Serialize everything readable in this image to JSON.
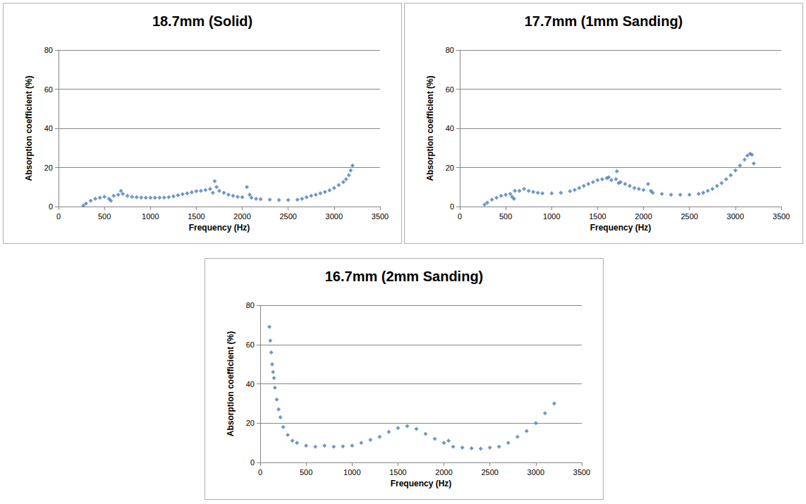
{
  "chart_data": [
    {
      "type": "scatter",
      "title": "18.7mm (Solid)",
      "xlabel": "Frequency (Hz)",
      "ylabel": "Absorption coefficient (%)",
      "x": [
        270,
        300,
        350,
        400,
        450,
        500,
        550,
        570,
        600,
        650,
        680,
        700,
        750,
        800,
        850,
        900,
        950,
        1000,
        1050,
        1100,
        1150,
        1200,
        1250,
        1300,
        1350,
        1400,
        1450,
        1500,
        1550,
        1600,
        1650,
        1680,
        1700,
        1720,
        1750,
        1800,
        1850,
        1900,
        1950,
        2000,
        2050,
        2080,
        2100,
        2150,
        2200,
        2300,
        2400,
        2500,
        2600,
        2650,
        2700,
        2750,
        2800,
        2850,
        2900,
        2950,
        3000,
        3050,
        3100,
        3130,
        3160,
        3180,
        3200
      ],
      "values": [
        0.5,
        1.5,
        3,
        4,
        4.5,
        5,
        4,
        3,
        5.5,
        6,
        8,
        6.5,
        5.5,
        5,
        4.8,
        4.6,
        4.5,
        4.5,
        4.5,
        4.5,
        4.6,
        4.8,
        5.2,
        5.8,
        6.3,
        6.8,
        7.3,
        7.8,
        8,
        8.5,
        9,
        7,
        13,
        10,
        8,
        7,
        6,
        5.5,
        5,
        4.8,
        10,
        6,
        4.5,
        4,
        3.8,
        3.5,
        3.3,
        3.3,
        3.5,
        4,
        4.8,
        5.5,
        6,
        6.8,
        7.5,
        8.3,
        9.5,
        11,
        12.5,
        14,
        16,
        18.5,
        21
      ],
      "color": "#4a7ebb",
      "marker": "diamond",
      "xlim": [
        0,
        3500
      ],
      "xticks": [
        0,
        500,
        1000,
        1500,
        2000,
        2500,
        3000,
        3500
      ],
      "ylim": [
        0,
        80
      ],
      "yticks": [
        0,
        20,
        40,
        60,
        80
      ],
      "grid": true
    },
    {
      "type": "scatter",
      "title": "17.7mm (1mm Sanding)",
      "xlabel": "Frequency (Hz)",
      "ylabel": "Absorption coefficient (%)",
      "x": [
        270,
        300,
        350,
        400,
        450,
        500,
        550,
        570,
        590,
        600,
        650,
        700,
        750,
        800,
        850,
        900,
        1000,
        1100,
        1200,
        1250,
        1300,
        1350,
        1400,
        1450,
        1500,
        1550,
        1600,
        1620,
        1650,
        1700,
        1710,
        1730,
        1750,
        1800,
        1850,
        1900,
        1950,
        2000,
        2050,
        2080,
        2100,
        2200,
        2300,
        2400,
        2500,
        2600,
        2650,
        2700,
        2750,
        2800,
        2850,
        2900,
        2950,
        3000,
        3050,
        3100,
        3130,
        3160,
        3180,
        3200
      ],
      "values": [
        1,
        2,
        3.5,
        4.5,
        5.5,
        6,
        6.5,
        5,
        4,
        8,
        8,
        9,
        8,
        7.5,
        7,
        6.8,
        6.8,
        7,
        7.8,
        8.5,
        9.5,
        10.5,
        11.5,
        12.5,
        13.5,
        14,
        14.5,
        15,
        13.5,
        14,
        18,
        12,
        12.5,
        11.5,
        10.5,
        9.5,
        9,
        8.5,
        11.5,
        8,
        7,
        6.5,
        6,
        6,
        6,
        6.5,
        7,
        8,
        9,
        10.5,
        12,
        14,
        16,
        18.5,
        21,
        24,
        26,
        27,
        26.5,
        22
      ],
      "color": "#4a7ebb",
      "marker": "diamond",
      "xlim": [
        0,
        3500
      ],
      "xticks": [
        0,
        500,
        1000,
        1500,
        2000,
        2500,
        3000,
        3500
      ],
      "ylim": [
        0,
        80
      ],
      "yticks": [
        0,
        20,
        40,
        60,
        80
      ],
      "grid": true
    },
    {
      "type": "scatter",
      "title": "16.7mm (2mm Sanding)",
      "xlabel": "Frequency (Hz)",
      "ylabel": "Absorption coefficient (%)",
      "x": [
        100,
        110,
        120,
        130,
        140,
        150,
        160,
        180,
        200,
        220,
        250,
        300,
        350,
        400,
        500,
        600,
        700,
        800,
        900,
        1000,
        1100,
        1200,
        1300,
        1400,
        1500,
        1600,
        1700,
        1800,
        1900,
        2000,
        2050,
        2100,
        2200,
        2300,
        2400,
        2500,
        2600,
        2700,
        2800,
        2900,
        3000,
        3100,
        3200
      ],
      "values": [
        69,
        62,
        56,
        50,
        46,
        43,
        38,
        32,
        27,
        23,
        18,
        14,
        11,
        10,
        8.5,
        8,
        8.5,
        8,
        8.2,
        8.5,
        10,
        11.5,
        13,
        15.5,
        17.5,
        18.5,
        17,
        14.5,
        12,
        10,
        11,
        8,
        7.5,
        7.2,
        7,
        7.5,
        8,
        10,
        13,
        16,
        20,
        25,
        30
      ],
      "color": "#4a7ebb",
      "marker": "diamond",
      "xlim": [
        0,
        3500
      ],
      "xticks": [
        0,
        500,
        1000,
        1500,
        2000,
        2500,
        3000,
        3500
      ],
      "ylim": [
        0,
        80
      ],
      "yticks": [
        0,
        20,
        40,
        60,
        80
      ],
      "grid": true
    }
  ]
}
